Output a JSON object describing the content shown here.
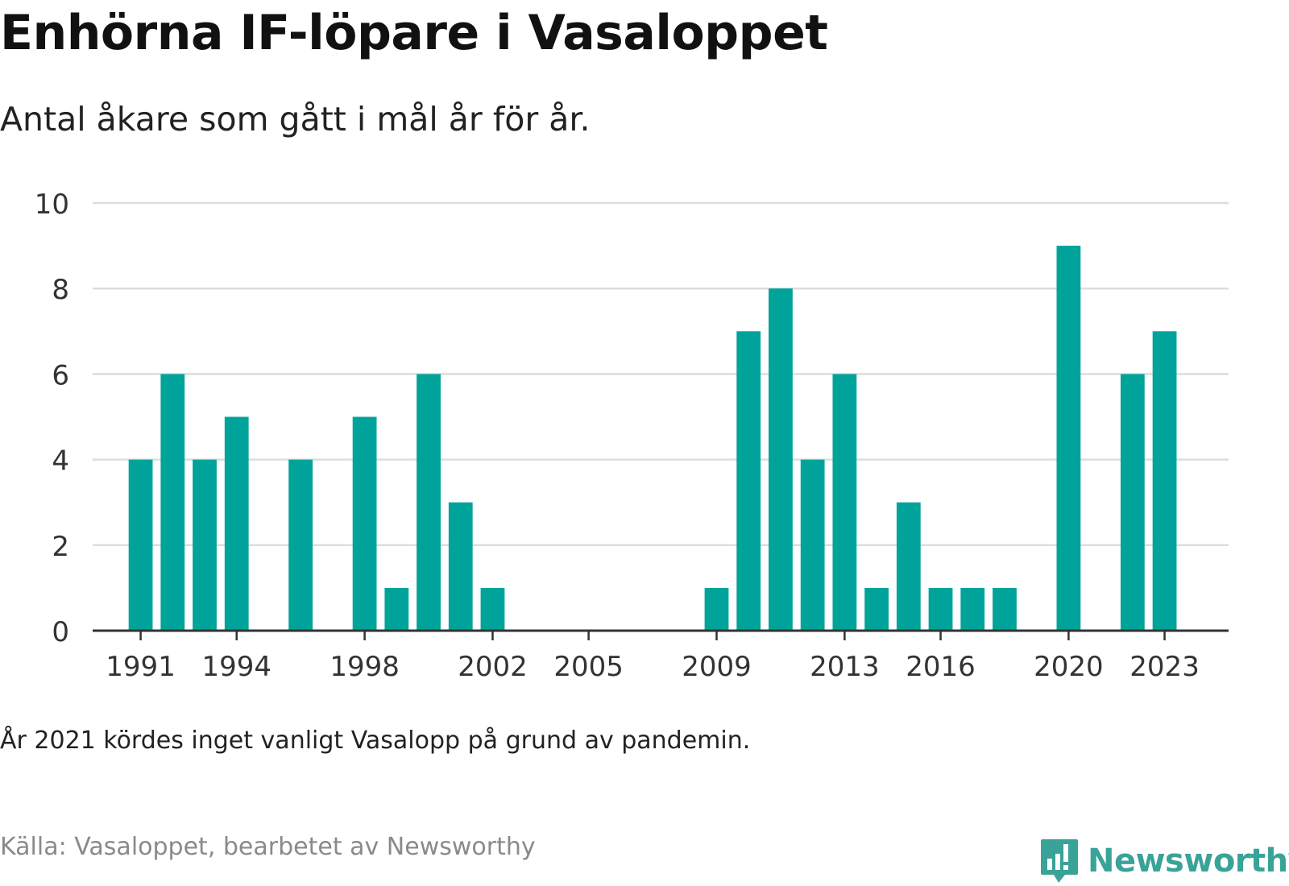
{
  "title": "Enhörna IF-löpare i Vasaloppet",
  "subtitle": "Antal åkare som gått i mål år för år.",
  "note": "År 2021 kördes inget vanligt Vasalopp på grund av pandemin.",
  "source": "Källa: Vasaloppet, bearbetet av Newsworthy",
  "brand": {
    "name": "Newsworthy",
    "color": "#3aa398",
    "icon": "bar-chart-exclamation-icon"
  },
  "colors": {
    "bar": "#00a39a",
    "grid": "#dddddd",
    "axis": "#333333"
  },
  "chart_data": {
    "type": "bar",
    "x": [
      1991,
      1992,
      1993,
      1994,
      1995,
      1996,
      1997,
      1998,
      1999,
      2000,
      2001,
      2002,
      2003,
      2004,
      2005,
      2006,
      2007,
      2008,
      2009,
      2010,
      2011,
      2012,
      2013,
      2014,
      2015,
      2016,
      2017,
      2018,
      2019,
      2020,
      2021,
      2022,
      2023
    ],
    "values": [
      4,
      6,
      4,
      5,
      0,
      4,
      0,
      5,
      1,
      6,
      3,
      1,
      0,
      0,
      0,
      0,
      0,
      0,
      1,
      7,
      8,
      4,
      6,
      1,
      3,
      1,
      1,
      1,
      0,
      9,
      0,
      6,
      7
    ],
    "xticks": [
      1991,
      1994,
      1998,
      2002,
      2005,
      2009,
      2013,
      2016,
      2020,
      2023
    ],
    "yticks": [
      0,
      2,
      4,
      6,
      8,
      10
    ],
    "ylim": [
      0,
      10
    ],
    "xlim": [
      1989.5,
      2025
    ],
    "grid": true,
    "legend": "none"
  }
}
